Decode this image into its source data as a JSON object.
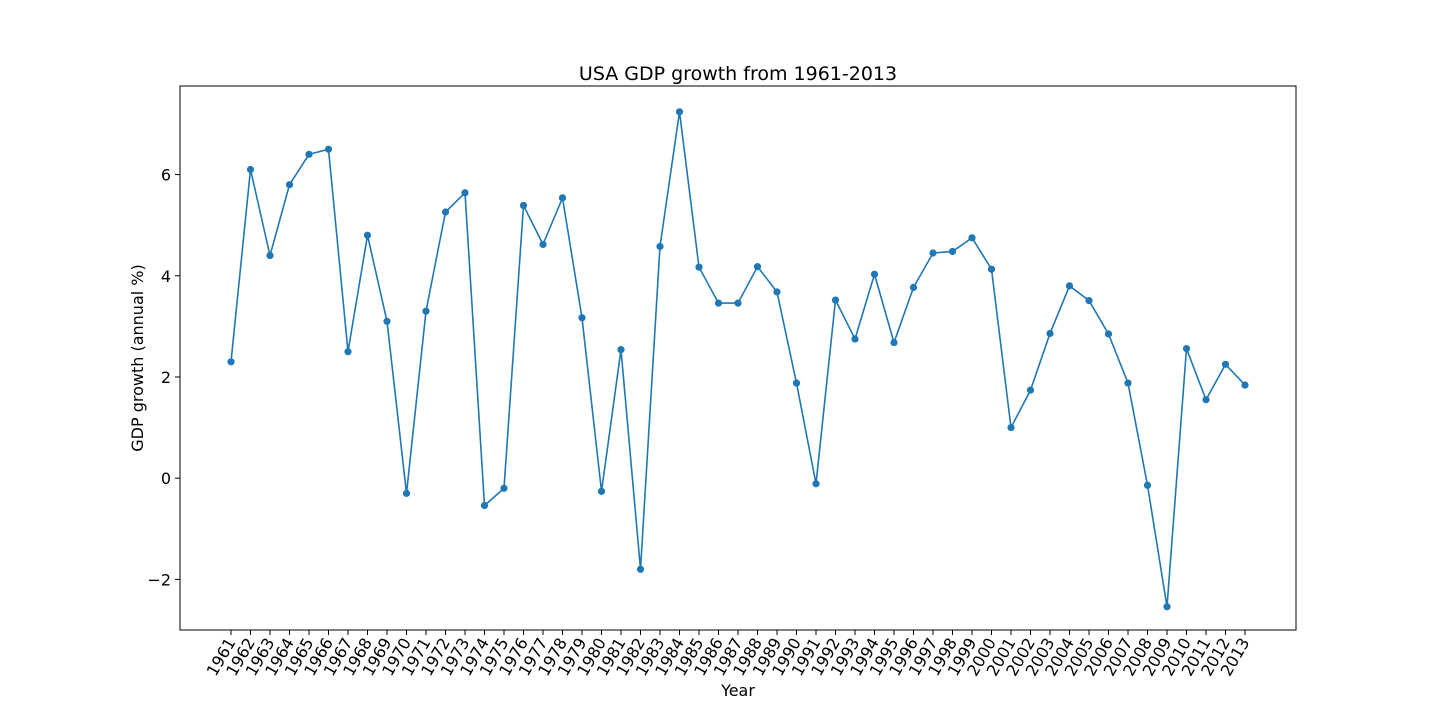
{
  "chart_data": {
    "type": "line",
    "title": "USA GDP growth from 1961-2013",
    "xlabel": "Year",
    "ylabel": "GDP growth (annual %)",
    "ylim": [
      -3.0,
      7.75
    ],
    "yticks": [
      -2,
      0,
      2,
      4,
      6
    ],
    "ytick_labels": [
      "−2",
      "0",
      "2",
      "4",
      "6"
    ],
    "grid": false,
    "color": "#1f77b4",
    "marker": "circle",
    "x": [
      "1961",
      "1962",
      "1963",
      "1964",
      "1965",
      "1966",
      "1967",
      "1968",
      "1969",
      "1970",
      "1971",
      "1972",
      "1973",
      "1974",
      "1975",
      "1976",
      "1977",
      "1978",
      "1979",
      "1980",
      "1981",
      "1982",
      "1983",
      "1984",
      "1985",
      "1986",
      "1987",
      "1988",
      "1989",
      "1990",
      "1991",
      "1992",
      "1993",
      "1994",
      "1995",
      "1996",
      "1997",
      "1998",
      "1999",
      "2000",
      "2001",
      "2002",
      "2003",
      "2004",
      "2005",
      "2006",
      "2007",
      "2008",
      "2009",
      "2010",
      "2011",
      "2012",
      "2013"
    ],
    "values": [
      2.3,
      6.1,
      4.4,
      5.8,
      6.4,
      6.5,
      2.5,
      4.8,
      3.1,
      -0.3,
      3.3,
      5.26,
      5.64,
      -0.54,
      -0.2,
      5.39,
      4.62,
      5.54,
      3.17,
      -0.26,
      2.54,
      -1.8,
      4.58,
      7.24,
      4.17,
      3.46,
      3.46,
      4.18,
      3.68,
      1.88,
      -0.11,
      3.52,
      2.75,
      4.03,
      2.68,
      3.77,
      4.45,
      4.48,
      4.75,
      4.13,
      1.0,
      1.74,
      2.86,
      3.8,
      3.51,
      2.85,
      1.88,
      -0.14,
      -2.54,
      2.56,
      1.55,
      2.25,
      1.84
    ]
  }
}
